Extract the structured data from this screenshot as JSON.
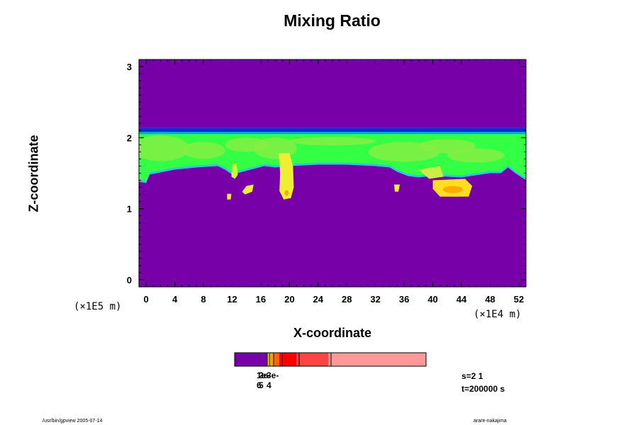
{
  "chart_data": {
    "type": "heatmap",
    "title": "Mixing Ratio",
    "xlabel": "X-coordinate",
    "ylabel": "Z-coordinate",
    "x_unit": "(×1E4 m)",
    "y_unit": "(×1E5 m)",
    "xlim": [
      -1,
      53
    ],
    "ylim": [
      -0.1,
      3.1
    ],
    "x_ticks": [
      "0",
      "4",
      "8",
      "12",
      "16",
      "20",
      "24",
      "28",
      "32",
      "36",
      "40",
      "44",
      "48",
      "52"
    ],
    "y_ticks": [
      "0",
      "1",
      "2",
      "3"
    ],
    "background_color": "#7700a8",
    "layer": {
      "z_top": 2.1,
      "z_bottom_typical": 1.58,
      "top_band_color": "#0033d0",
      "fill_color": "#33ff44",
      "light_fill_color": "#88ee44"
    },
    "colorbar": {
      "labels": [
        "1e-6",
        "2e-5",
        "3e-4"
      ],
      "colors": [
        "#7700a8",
        "#ffdd00",
        "#ff9900",
        "#ff6600",
        "#ff0000",
        "#ff4444",
        "#ff9999"
      ]
    },
    "info": {
      "s": "s=2 1",
      "t": "t=200000 s"
    }
  },
  "footer": {
    "left": "/usr/bin/gpview 2005-07-14",
    "right": "arare-nakajima"
  }
}
